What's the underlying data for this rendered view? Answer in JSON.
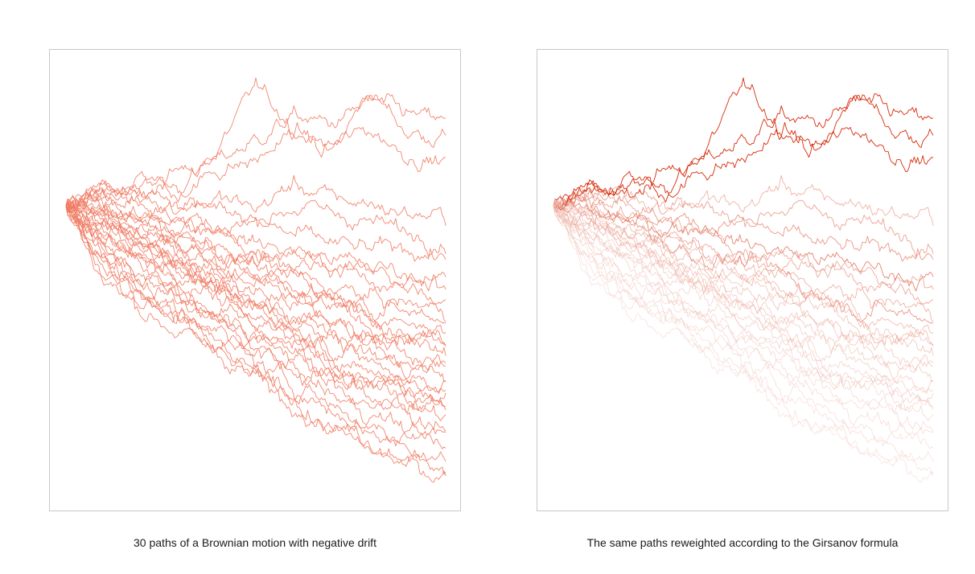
{
  "chart_data": [
    {
      "type": "line",
      "title": "",
      "caption": "30 paths of a Brownian motion with negative drift",
      "xlabel": "",
      "ylabel": "",
      "xlim": [
        0,
        1
      ],
      "ylim": [
        -2.0,
        1.0
      ],
      "grid": false,
      "legend": "none",
      "color": "#f07a62",
      "opacity": 0.9,
      "n_paths": 30,
      "series": [
        {
          "x": [
            0,
            0.1,
            0.2,
            0.3,
            0.4,
            0.5,
            0.6,
            0.7,
            0.8,
            0.9,
            1.0
          ],
          "y": [
            0,
            0.14,
            0.06,
            0.12,
            0.38,
            0.8,
            0.55,
            0.35,
            0.78,
            0.5,
            0.47
          ],
          "w": 1.0
        },
        {
          "x": [
            0,
            0.1,
            0.2,
            0.3,
            0.4,
            0.5,
            0.6,
            0.7,
            0.8,
            0.9,
            1.0
          ],
          "y": [
            0,
            0.1,
            0.15,
            0.25,
            0.3,
            0.45,
            0.6,
            0.55,
            0.7,
            0.62,
            0.55
          ],
          "w": 1.0
        },
        {
          "x": [
            0,
            0.1,
            0.2,
            0.3,
            0.4,
            0.5,
            0.6,
            0.7,
            0.8,
            0.9,
            1.0
          ],
          "y": [
            0,
            0.05,
            0.2,
            0.1,
            0.25,
            0.3,
            0.5,
            0.4,
            0.52,
            0.35,
            0.3
          ],
          "w": 1.0
        },
        {
          "x": [
            0,
            0.1,
            0.2,
            0.3,
            0.4,
            0.5,
            0.6,
            0.7,
            0.8,
            0.9,
            1.0
          ],
          "y": [
            0,
            0.12,
            0.08,
            0.02,
            0.05,
            -0.02,
            0.15,
            0.05,
            0.02,
            -0.05,
            -0.08
          ],
          "w": 0.25
        },
        {
          "x": [
            0,
            0.1,
            0.2,
            0.3,
            0.4,
            0.5,
            0.6,
            0.7,
            0.8,
            0.9,
            1.0
          ],
          "y": [
            0,
            0.06,
            0.12,
            0.0,
            -0.05,
            -0.1,
            0.0,
            -0.05,
            -0.1,
            -0.18,
            -0.22
          ],
          "w": 0.35
        },
        {
          "x": [
            0,
            0.1,
            0.2,
            0.3,
            0.4,
            0.5,
            0.6,
            0.7,
            0.8,
            0.9,
            1.0
          ],
          "y": [
            0,
            0.02,
            -0.05,
            -0.08,
            -0.12,
            -0.1,
            -0.2,
            -0.25,
            -0.3,
            -0.28,
            -0.35
          ],
          "w": 0.4
        },
        {
          "x": [
            0,
            0.1,
            0.2,
            0.3,
            0.4,
            0.5,
            0.6,
            0.7,
            0.8,
            0.9,
            1.0
          ],
          "y": [
            0,
            -0.05,
            -0.1,
            -0.15,
            -0.12,
            -0.25,
            -0.3,
            -0.35,
            -0.4,
            -0.45,
            -0.5
          ],
          "w": 0.5
        },
        {
          "x": [
            0,
            0.1,
            0.2,
            0.3,
            0.4,
            0.5,
            0.6,
            0.7,
            0.8,
            0.9,
            1.0
          ],
          "y": [
            0,
            0.08,
            -0.02,
            -0.1,
            -0.2,
            -0.3,
            -0.28,
            -0.4,
            -0.45,
            -0.52,
            -0.55
          ],
          "w": 0.3
        },
        {
          "x": [
            0,
            0.1,
            0.2,
            0.3,
            0.4,
            0.5,
            0.6,
            0.7,
            0.8,
            0.9,
            1.0
          ],
          "y": [
            0,
            -0.08,
            -0.05,
            -0.2,
            -0.25,
            -0.35,
            -0.4,
            -0.38,
            -0.5,
            -0.58,
            -0.62
          ],
          "w": 0.3
        },
        {
          "x": [
            0,
            0.1,
            0.2,
            0.3,
            0.4,
            0.5,
            0.6,
            0.7,
            0.8,
            0.9,
            1.0
          ],
          "y": [
            0,
            -0.1,
            -0.18,
            -0.22,
            -0.3,
            -0.42,
            -0.48,
            -0.55,
            -0.62,
            -0.66,
            -0.7
          ],
          "w": 0.25
        },
        {
          "x": [
            0,
            0.1,
            0.2,
            0.3,
            0.4,
            0.5,
            0.6,
            0.7,
            0.8,
            0.9,
            1.0
          ],
          "y": [
            0,
            0.04,
            -0.12,
            -0.25,
            -0.35,
            -0.38,
            -0.45,
            -0.6,
            -0.68,
            -0.72,
            -0.75
          ],
          "w": 0.4
        },
        {
          "x": [
            0,
            0.1,
            0.2,
            0.3,
            0.4,
            0.5,
            0.6,
            0.7,
            0.8,
            0.9,
            1.0
          ],
          "y": [
            0,
            -0.12,
            -0.2,
            -0.3,
            -0.4,
            -0.48,
            -0.55,
            -0.65,
            -0.72,
            -0.78,
            -0.82
          ],
          "w": 0.2
        },
        {
          "x": [
            0,
            0.1,
            0.2,
            0.3,
            0.4,
            0.5,
            0.6,
            0.7,
            0.8,
            0.9,
            1.0
          ],
          "y": [
            0,
            -0.02,
            -0.15,
            -0.28,
            -0.32,
            -0.45,
            -0.58,
            -0.62,
            -0.75,
            -0.85,
            -0.88
          ],
          "w": 0.2
        },
        {
          "x": [
            0,
            0.1,
            0.2,
            0.3,
            0.4,
            0.5,
            0.6,
            0.7,
            0.8,
            0.9,
            1.0
          ],
          "y": [
            0,
            -0.15,
            -0.25,
            -0.35,
            -0.45,
            -0.55,
            -0.62,
            -0.7,
            -0.8,
            -0.88,
            -0.95
          ],
          "w": 0.15
        },
        {
          "x": [
            0,
            0.1,
            0.2,
            0.3,
            0.4,
            0.5,
            0.6,
            0.7,
            0.8,
            0.9,
            1.0
          ],
          "y": [
            0,
            -0.05,
            -0.2,
            -0.32,
            -0.48,
            -0.58,
            -0.66,
            -0.78,
            -0.86,
            -0.92,
            -1.0
          ],
          "w": 0.15
        },
        {
          "x": [
            0,
            0.1,
            0.2,
            0.3,
            0.4,
            0.5,
            0.6,
            0.7,
            0.8,
            0.9,
            1.0
          ],
          "y": [
            0,
            -0.18,
            -0.3,
            -0.4,
            -0.5,
            -0.62,
            -0.72,
            -0.8,
            -0.9,
            -0.98,
            -1.05
          ],
          "w": 0.12
        },
        {
          "x": [
            0,
            0.1,
            0.2,
            0.3,
            0.4,
            0.5,
            0.6,
            0.7,
            0.8,
            0.9,
            1.0
          ],
          "y": [
            0,
            -0.1,
            -0.28,
            -0.38,
            -0.52,
            -0.65,
            -0.75,
            -0.85,
            -0.95,
            -1.05,
            -1.1
          ],
          "w": 0.12
        },
        {
          "x": [
            0,
            0.1,
            0.2,
            0.3,
            0.4,
            0.5,
            0.6,
            0.7,
            0.8,
            0.9,
            1.0
          ],
          "y": [
            0,
            -0.22,
            -0.35,
            -0.48,
            -0.58,
            -0.7,
            -0.8,
            -0.9,
            -1.0,
            -1.08,
            -1.15
          ],
          "w": 0.1
        },
        {
          "x": [
            0,
            0.1,
            0.2,
            0.3,
            0.4,
            0.5,
            0.6,
            0.7,
            0.8,
            0.9,
            1.0
          ],
          "y": [
            0,
            -0.08,
            -0.22,
            -0.4,
            -0.55,
            -0.68,
            -0.82,
            -0.95,
            -1.05,
            -1.15,
            -1.2
          ],
          "w": 0.1
        },
        {
          "x": [
            0,
            0.1,
            0.2,
            0.3,
            0.4,
            0.5,
            0.6,
            0.7,
            0.8,
            0.9,
            1.0
          ],
          "y": [
            0,
            -0.25,
            -0.4,
            -0.5,
            -0.62,
            -0.75,
            -0.88,
            -1.0,
            -1.1,
            -1.18,
            -1.25
          ],
          "w": 0.08
        },
        {
          "x": [
            0,
            0.1,
            0.2,
            0.3,
            0.4,
            0.5,
            0.6,
            0.7,
            0.8,
            0.9,
            1.0
          ],
          "y": [
            0,
            -0.3,
            -0.45,
            -0.58,
            -0.7,
            -0.82,
            -0.95,
            -1.05,
            -1.15,
            -1.22,
            -1.28
          ],
          "w": 0.08
        },
        {
          "x": [
            0,
            0.1,
            0.2,
            0.3,
            0.4,
            0.5,
            0.6,
            0.7,
            0.8,
            0.9,
            1.0
          ],
          "y": [
            0,
            -0.12,
            -0.32,
            -0.45,
            -0.6,
            -0.78,
            -0.92,
            -1.08,
            -1.18,
            -1.25,
            -1.32
          ],
          "w": 0.08
        },
        {
          "x": [
            0,
            0.1,
            0.2,
            0.3,
            0.4,
            0.5,
            0.6,
            0.7,
            0.8,
            0.9,
            1.0
          ],
          "y": [
            0,
            -0.35,
            -0.5,
            -0.62,
            -0.75,
            -0.9,
            -1.02,
            -1.12,
            -1.22,
            -1.3,
            -1.38
          ],
          "w": 0.06
        },
        {
          "x": [
            0,
            0.1,
            0.2,
            0.3,
            0.4,
            0.5,
            0.6,
            0.7,
            0.8,
            0.9,
            1.0
          ],
          "y": [
            0,
            -0.2,
            -0.38,
            -0.55,
            -0.72,
            -0.85,
            -1.0,
            -1.15,
            -1.25,
            -1.35,
            -1.42
          ],
          "w": 0.06
        },
        {
          "x": [
            0,
            0.1,
            0.2,
            0.3,
            0.4,
            0.5,
            0.6,
            0.7,
            0.8,
            0.9,
            1.0
          ],
          "y": [
            0,
            -0.4,
            -0.58,
            -0.7,
            -0.82,
            -0.98,
            -1.1,
            -1.22,
            -1.32,
            -1.4,
            -1.48
          ],
          "w": 0.05
        },
        {
          "x": [
            0,
            0.1,
            0.2,
            0.3,
            0.4,
            0.5,
            0.6,
            0.7,
            0.8,
            0.9,
            1.0
          ],
          "y": [
            0,
            -0.28,
            -0.48,
            -0.66,
            -0.8,
            -0.95,
            -1.12,
            -1.28,
            -1.4,
            -1.5,
            -1.55
          ],
          "w": 0.05
        },
        {
          "x": [
            0,
            0.1,
            0.2,
            0.3,
            0.4,
            0.5,
            0.6,
            0.7,
            0.8,
            0.9,
            1.0
          ],
          "y": [
            0,
            -0.45,
            -0.62,
            -0.78,
            -0.92,
            -1.08,
            -1.22,
            -1.35,
            -1.48,
            -1.55,
            -1.62
          ],
          "w": 0.04
        },
        {
          "x": [
            0,
            0.1,
            0.2,
            0.3,
            0.4,
            0.5,
            0.6,
            0.7,
            0.8,
            0.9,
            1.0
          ],
          "y": [
            0,
            -0.32,
            -0.55,
            -0.75,
            -0.9,
            -1.05,
            -1.22,
            -1.38,
            -1.52,
            -1.62,
            -1.7
          ],
          "w": 0.04
        },
        {
          "x": [
            0,
            0.1,
            0.2,
            0.3,
            0.4,
            0.5,
            0.6,
            0.7,
            0.8,
            0.9,
            1.0
          ],
          "y": [
            0,
            -0.5,
            -0.7,
            -0.85,
            -1.0,
            -1.15,
            -1.3,
            -1.45,
            -1.58,
            -1.68,
            -1.78
          ],
          "w": 0.03
        },
        {
          "x": [
            0,
            0.1,
            0.2,
            0.3,
            0.4,
            0.5,
            0.6,
            0.7,
            0.8,
            0.9,
            1.0
          ],
          "y": [
            0,
            -0.38,
            -0.62,
            -0.82,
            -1.0,
            -1.18,
            -1.35,
            -1.52,
            -1.65,
            -1.75,
            -1.82
          ],
          "w": 0.03
        }
      ]
    },
    {
      "type": "line",
      "title": "",
      "caption": "The same paths reweighted according to the Girsanov formula",
      "xlabel": "",
      "ylabel": "",
      "xlim": [
        0,
        1
      ],
      "ylim": [
        -2.0,
        1.0
      ],
      "grid": false,
      "legend": "none",
      "color_low": "#f4dcd6",
      "color_high": "#d62b0a",
      "weighting": "girsanov"
    }
  ]
}
